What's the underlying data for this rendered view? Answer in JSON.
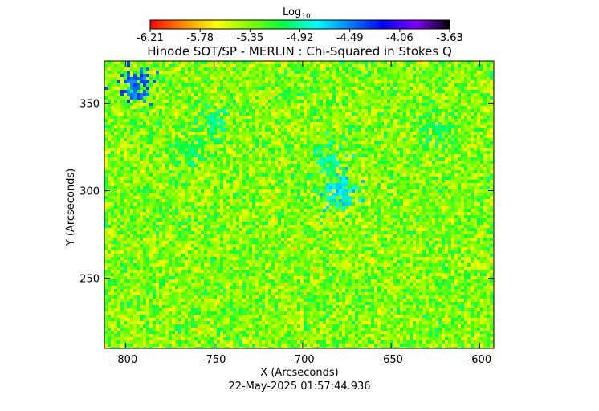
{
  "colorbar": {
    "label": "Log",
    "label_sub": "10",
    "ticks": [
      "-6.21",
      "-5.78",
      "-5.35",
      "-4.92",
      "-4.49",
      "-4.06",
      "-3.63"
    ],
    "range": [
      -6.21,
      -3.63
    ],
    "colors": [
      "#ff0000",
      "#ff8c00",
      "#ffff00",
      "#7fff00",
      "#00ff40",
      "#00ffff",
      "#0080ff",
      "#0000ff",
      "#8000ff",
      "#000000"
    ]
  },
  "chart_data": {
    "type": "heatmap",
    "title": "Hinode SOT/SP - MERLIN : Chi-Squared in Stokes Q",
    "xlabel": "X (Arcseconds)",
    "ylabel": "Y (Arcseconds)",
    "xlim": [
      -812,
      -592
    ],
    "ylim": [
      210,
      374
    ],
    "xticks": [
      -800,
      -750,
      -700,
      -650,
      -600
    ],
    "xtick_labels": [
      "-800",
      "-750",
      "-700",
      "-650",
      "-600"
    ],
    "yticks": [
      250,
      300,
      350
    ],
    "ytick_labels": [
      "250",
      "300",
      "350"
    ],
    "dominant_value_range": [
      -5.6,
      -5.1
    ],
    "features": [
      {
        "x": -765,
        "y": 325,
        "value": -4.9
      },
      {
        "x": -752,
        "y": 340,
        "value": -4.85
      },
      {
        "x": -680,
        "y": 300,
        "value": -4.6
      },
      {
        "x": -686,
        "y": 318,
        "value": -4.8
      },
      {
        "x": -625,
        "y": 335,
        "value": -4.9
      },
      {
        "x": -795,
        "y": 362,
        "value": -4.3
      }
    ]
  },
  "timestamp": "22-May-2025 01:57:44.936"
}
